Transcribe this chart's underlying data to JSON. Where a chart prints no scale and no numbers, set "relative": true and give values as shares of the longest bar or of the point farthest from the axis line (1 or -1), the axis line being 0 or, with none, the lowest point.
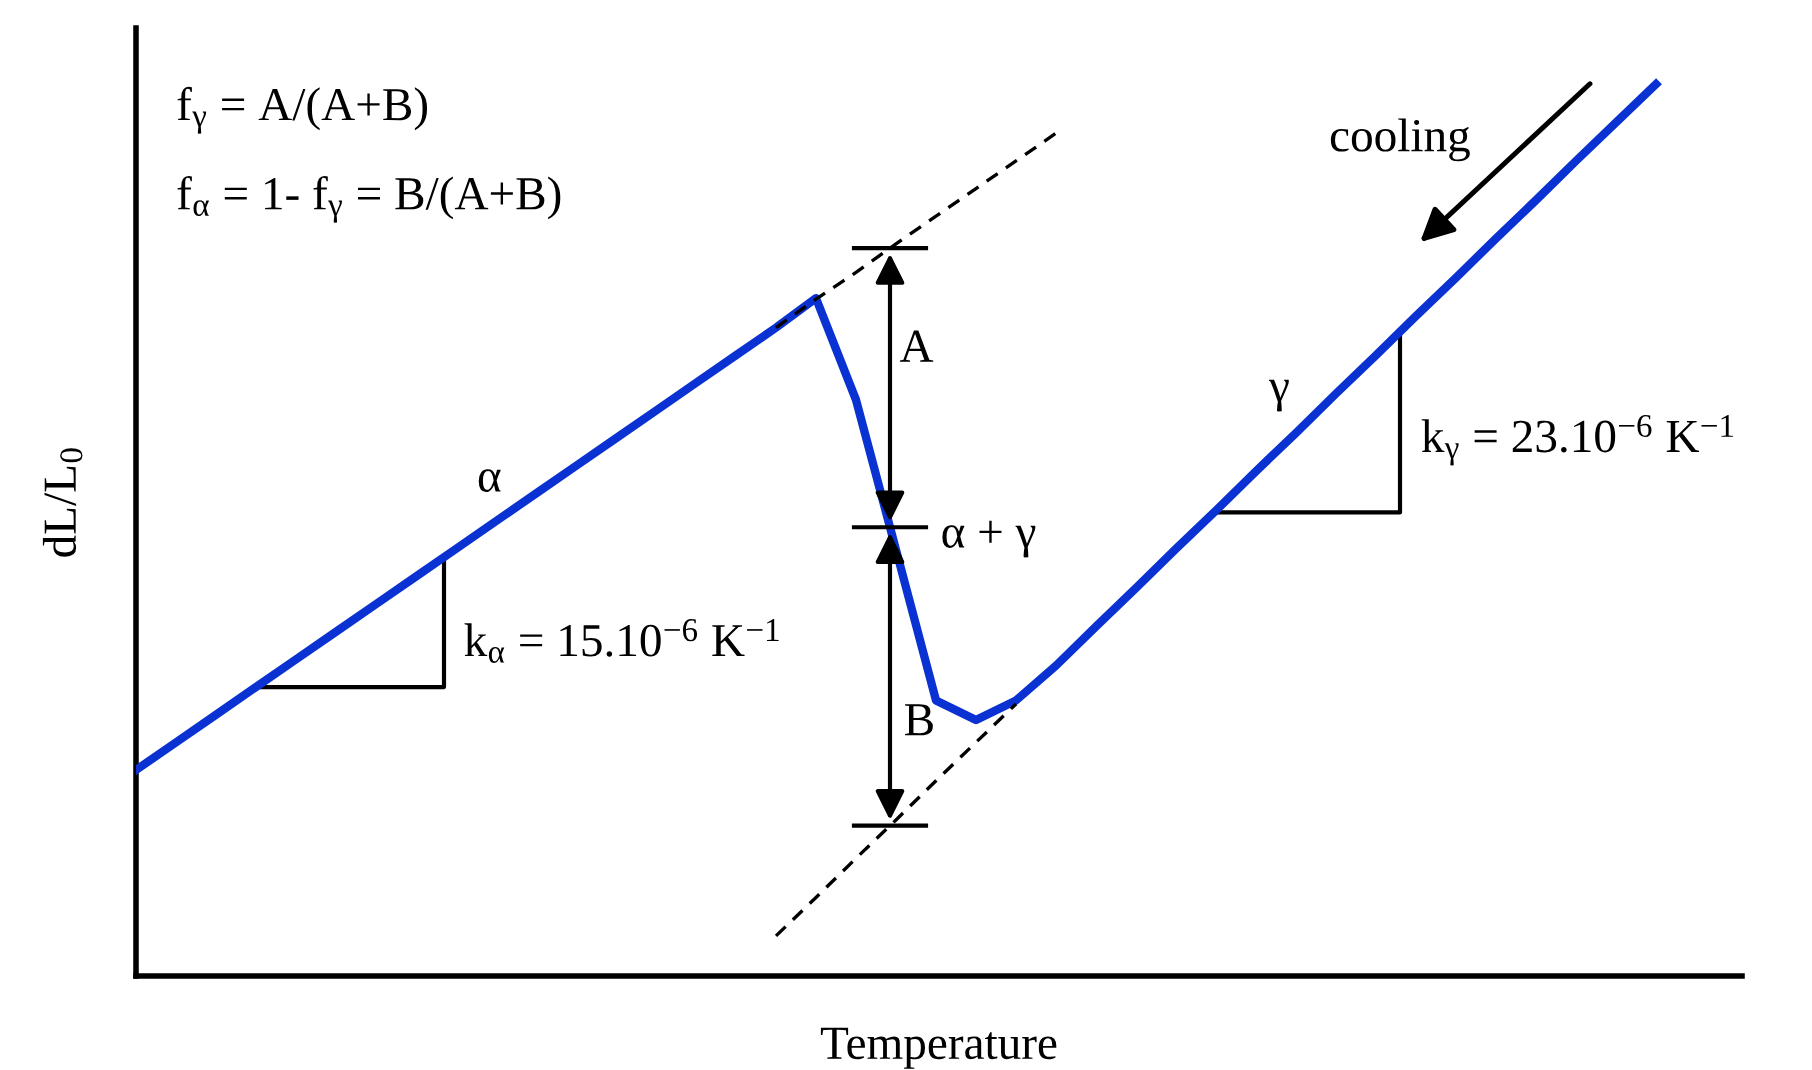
{
  "chart_data": {
    "type": "line",
    "relative": true,
    "xlabel": "Temperature",
    "ylabel": "dL/L$_{0}$",
    "categories": [
      null,
      null,
      null,
      null,
      null,
      null,
      null,
      null,
      null,
      null,
      null,
      null,
      null,
      null,
      null,
      null,
      null,
      null,
      null,
      null,
      null,
      null,
      null,
      null,
      null,
      null,
      null,
      null,
      null,
      null,
      null,
      null,
      null,
      null,
      null,
      null,
      null,
      null,
      null
    ],
    "series": [
      {
        "color": "#0a32d2",
        "line_style": "solid",
        "values": [
          0.231,
          0.262,
          0.293,
          0.324,
          0.355,
          0.386,
          0.417,
          0.448,
          0.479,
          0.51,
          0.541,
          0.572,
          0.603,
          0.634,
          0.665,
          0.696,
          0.727,
          0.76,
          0.646,
          0.478,
          0.309,
          0.287,
          0.309,
          0.348,
          0.392,
          0.435,
          0.479,
          0.522,
          0.566,
          0.609,
          0.653,
          0.696,
          0.74,
          0.783,
          0.827,
          0.87,
          0.914,
          0.957,
          1.0
        ]
      },
      {
        "color": "#000000",
        "line_style": "dashed",
        "values": [
          null,
          null,
          null,
          null,
          null,
          null,
          null,
          null,
          null,
          null,
          null,
          null,
          null,
          null,
          null,
          null,
          0.727,
          0.759,
          0.789,
          0.821,
          0.852,
          0.883,
          0.914,
          0.945,
          null,
          null,
          null,
          null,
          null,
          null,
          null,
          null,
          null,
          null,
          null,
          null,
          null,
          null,
          null
        ]
      },
      {
        "color": "#000000",
        "line_style": "dashed",
        "values": [
          null,
          null,
          null,
          null,
          null,
          null,
          null,
          null,
          null,
          null,
          null,
          null,
          null,
          null,
          null,
          null,
          0.045,
          0.088,
          0.132,
          0.175,
          0.219,
          0.262,
          0.305,
          null,
          null,
          null,
          null,
          null,
          null,
          null,
          null,
          null,
          null,
          null,
          null,
          null,
          null,
          null,
          null
        ]
      }
    ],
    "marker": "none",
    "legend": false,
    "annotations": [
      "f$_{γ}$ = A/(A+B)",
      "f$_{α}$ = 1- f$_{γ}$ = B/(A+B)",
      "α",
      "k$_{α}$ = 15.10$^{−6}$ K$^{−1}$",
      "A",
      "α + γ",
      "B",
      "γ",
      "k$_{γ}$ = 23.10$^{−6}$ K$^{−1}$",
      "cooling"
    ]
  }
}
